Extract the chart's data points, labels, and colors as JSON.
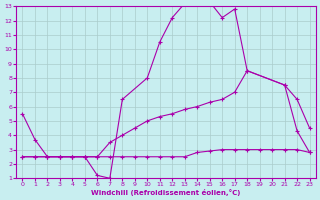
{
  "xlabel": "Windchill (Refroidissement éolien,°C)",
  "xlim": [
    -0.5,
    23.5
  ],
  "ylim": [
    1,
    13
  ],
  "xticks": [
    0,
    1,
    2,
    3,
    4,
    5,
    6,
    7,
    8,
    9,
    10,
    11,
    12,
    13,
    14,
    15,
    16,
    17,
    18,
    19,
    20,
    21,
    22,
    23
  ],
  "yticks": [
    1,
    2,
    3,
    4,
    5,
    6,
    7,
    8,
    9,
    10,
    11,
    12,
    13
  ],
  "bg_color": "#c8eef0",
  "line_color": "#aa00aa",
  "grid_color": "#aacccc",
  "line1_x": [
    0,
    1,
    2,
    3,
    4,
    5,
    6,
    7,
    8,
    10,
    11,
    12,
    13,
    14,
    15,
    16,
    17,
    18,
    21,
    22,
    23
  ],
  "line1_y": [
    5.5,
    3.7,
    2.5,
    2.5,
    2.5,
    2.5,
    1.2,
    1.0,
    6.5,
    8.0,
    10.5,
    12.2,
    13.2,
    13.3,
    13.3,
    12.2,
    12.8,
    8.5,
    7.5,
    4.3,
    2.8
  ],
  "line2_x": [
    0,
    1,
    2,
    3,
    4,
    5,
    6,
    7,
    8,
    9,
    10,
    11,
    12,
    13,
    14,
    15,
    16,
    17,
    18,
    21,
    22,
    23
  ],
  "line2_y": [
    2.5,
    2.5,
    2.5,
    2.5,
    2.5,
    2.5,
    2.5,
    3.5,
    4.0,
    4.5,
    5.0,
    5.3,
    5.5,
    5.8,
    6.0,
    6.3,
    6.5,
    7.0,
    8.5,
    7.5,
    6.5,
    4.5
  ],
  "line3_x": [
    0,
    1,
    2,
    3,
    4,
    5,
    6,
    7,
    8,
    9,
    10,
    11,
    12,
    13,
    14,
    15,
    16,
    17,
    18,
    19,
    20,
    21,
    22,
    23
  ],
  "line3_y": [
    2.5,
    2.5,
    2.5,
    2.5,
    2.5,
    2.5,
    2.5,
    2.5,
    2.5,
    2.5,
    2.5,
    2.5,
    2.5,
    2.5,
    2.8,
    2.9,
    3.0,
    3.0,
    3.0,
    3.0,
    3.0,
    3.0,
    3.0,
    2.8
  ]
}
